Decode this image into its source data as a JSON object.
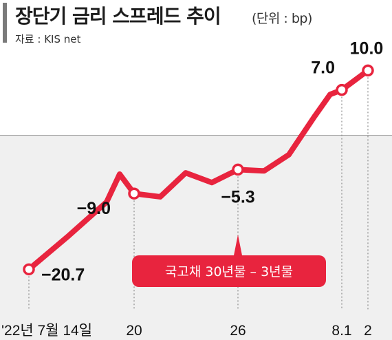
{
  "header": {
    "title": "장단기 금리 스프레드 추이",
    "unit": "(단위 : bp)",
    "source": "자료 : KIS net"
  },
  "colors": {
    "line": "#e8243e",
    "negative_area": "#f0f0f0",
    "title_bar": "#7a7a7a"
  },
  "chart_data": {
    "type": "line",
    "series": [
      {
        "name": "국고채 30년물 – 3년물",
        "values": [
          -20.7,
          -15.5,
          -10.3,
          -6.0,
          -9.0,
          -9.5,
          -5.8,
          -7.3,
          -5.3,
          -5.5,
          -3.0,
          3.0,
          6.3,
          7.0,
          10.0
        ]
      }
    ],
    "x_ticks": [
      "'22년 7월 14일",
      "20",
      "26",
      "8.1",
      "2"
    ],
    "x_tick_indices": [
      0,
      4,
      8,
      13,
      14
    ],
    "labeled_points": [
      {
        "index": 0,
        "label": "−20.7"
      },
      {
        "index": 4,
        "label": "−9.0"
      },
      {
        "index": 8,
        "label": "−5.3"
      },
      {
        "index": 13,
        "label": "7.0"
      },
      {
        "index": 14,
        "label": "10.0"
      }
    ],
    "ylim": [
      -23,
      11
    ],
    "zero_line": true,
    "negative_region_shaded": true,
    "callout": "국고채 30년물 – 3년물",
    "grid": false,
    "legend": "none"
  }
}
